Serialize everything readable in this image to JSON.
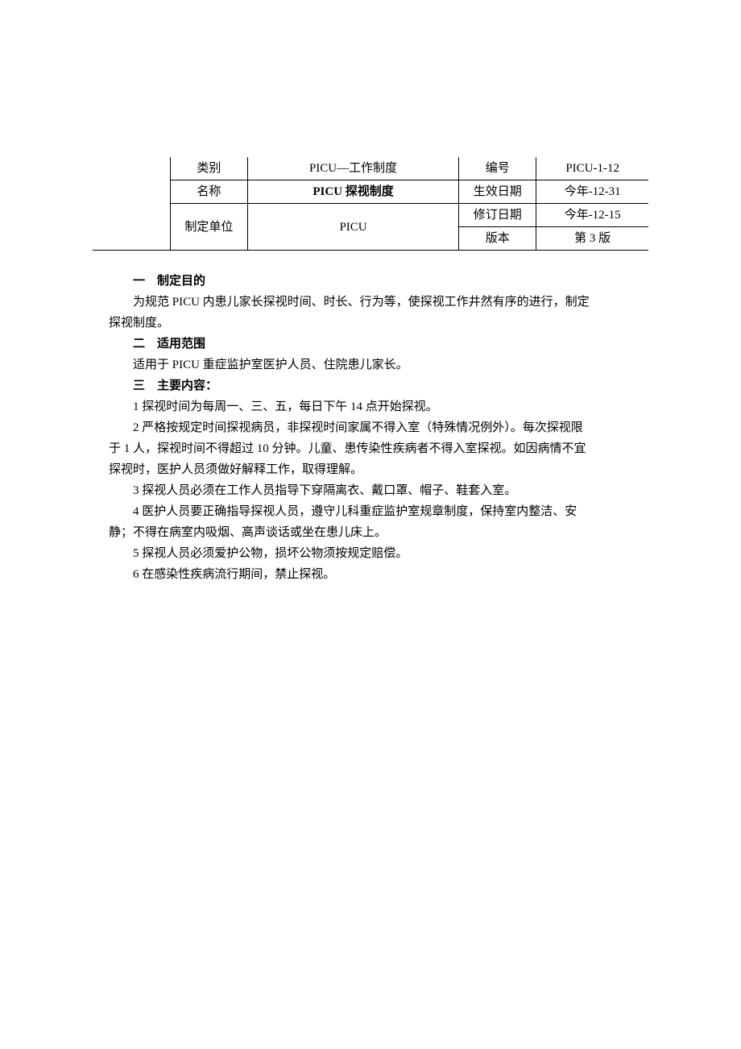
{
  "header_table": {
    "rows": [
      {
        "label": "类别",
        "value1": "PICU—工作制度",
        "label2": "编号",
        "value2": "PICU-1-12"
      },
      {
        "label": "名称",
        "value1": "PICU 探视制度",
        "value1_bold": true,
        "label2": "生效日期",
        "value2": "今年-12-31"
      },
      {
        "label": "制定单位",
        "value1": "PICU",
        "label2": "修订日期",
        "value2": "今年-12-15"
      },
      {
        "label2": "版本",
        "value2": "第 3 版"
      }
    ]
  },
  "sections": {
    "s1": {
      "heading": "一　制定目的",
      "p1": "为规范 PICU 内患儿家长探视时间、时长、行为等，使探视工作井然有序的进行，制定",
      "p1cont": "探视制度。"
    },
    "s2": {
      "heading": "二　适用范围",
      "p1": "适用于 PICU 重症监护室医护人员、住院患儿家长。"
    },
    "s3": {
      "heading": "三　主要内容：",
      "item1": "1 探视时间为每周一、三、五，每日下午 14 点开始探视。",
      "item2": "2 严格按规定时间探视病员，非探视时间家属不得入室（特殊情况例外）。每次探视限",
      "item2cont": "于 1 人，探视时间不得超过 10 分钟。儿童、患传染性疾病者不得入室探视。如因病情不宜",
      "item2cont2": "探视时，医护人员须做好解释工作，取得理解。",
      "item3": "3 探视人员必须在工作人员指导下穿隔离衣、戴口罩、帽子、鞋套入室。",
      "item4": "4 医护人员要正确指导探视人员，遵守儿科重症监护室规章制度，保持室内整洁、安",
      "item4cont": "静；不得在病室内吸烟、高声谈话或坐在患儿床上。",
      "item5": "5 探视人员必须爱护公物，损坏公物须按规定赔偿。",
      "item6": "6 在感染性疾病流行期间，禁止探视。"
    }
  }
}
